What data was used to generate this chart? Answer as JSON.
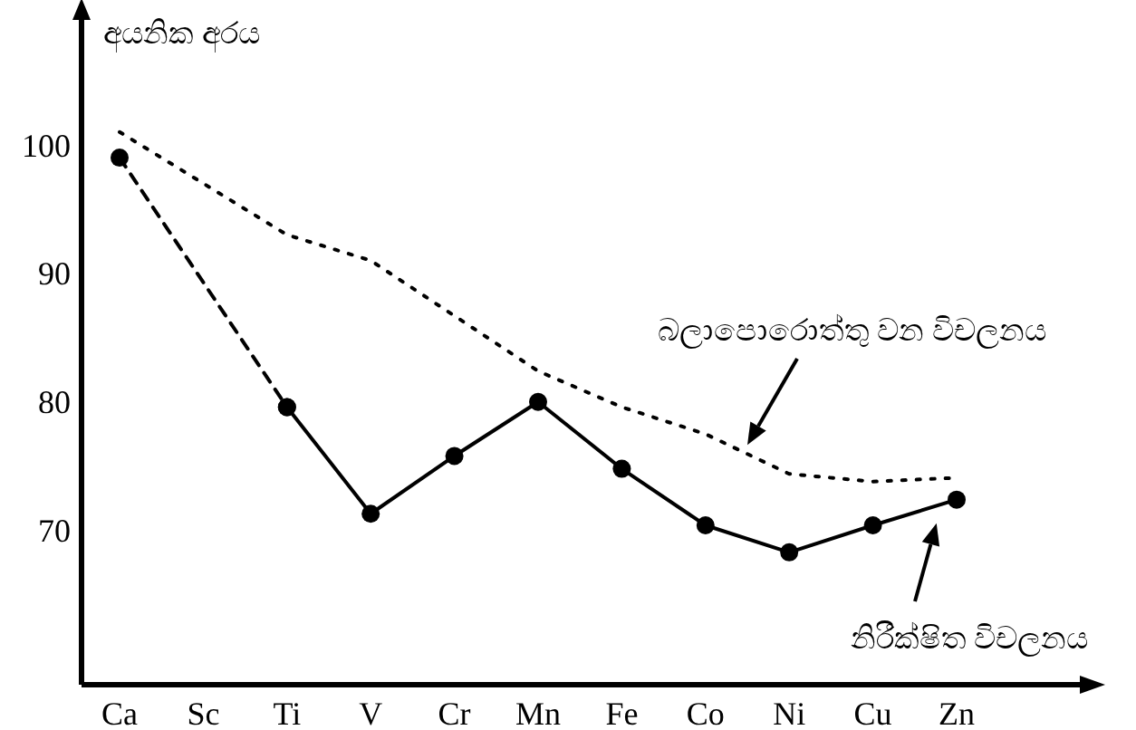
{
  "chart_data": {
    "type": "line",
    "ylabel": "අයනික අරය",
    "categories": [
      "Ca",
      "Sc",
      "Ti",
      "V",
      "Cr",
      "Mn",
      "Fe",
      "Co",
      "Ni",
      "Cu",
      "Zn"
    ],
    "series": [
      {
        "name": "බලාපොරොත්තු වන විචලනය",
        "color": "#000000",
        "line_style": "dotted",
        "marker": "none",
        "values": [
          101,
          97,
          93,
          91,
          86.7,
          82.4,
          79.6,
          77.5,
          74.4,
          73.8,
          74.1
        ]
      },
      {
        "color": "#000000",
        "line_style": "dashed",
        "marker": "circle",
        "values": [
          99,
          null,
          79.6,
          null,
          null,
          null,
          null,
          null,
          null,
          null,
          null
        ]
      },
      {
        "name": "නිරීක්ෂිත විචලනය",
        "color": "#000000",
        "line_style": "solid",
        "marker": "circle",
        "values": [
          null,
          null,
          79.6,
          71.3,
          75.8,
          80,
          74.8,
          70.4,
          68.3,
          70.4,
          72.4
        ]
      }
    ],
    "ylim": [
      58,
      110
    ],
    "yticks": [
      70,
      80,
      90,
      100
    ],
    "grid": false
  }
}
